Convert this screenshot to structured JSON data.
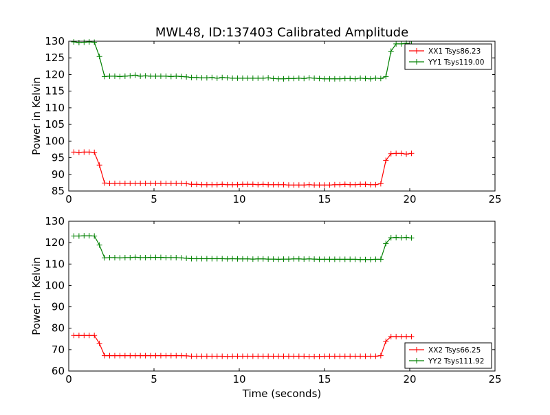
{
  "figure": {
    "title": "MWL48, ID:137403 Calibrated Amplitude",
    "xlabel": "Time (seconds)"
  },
  "chart_data": [
    {
      "type": "line",
      "title": "MWL48, ID:137403 Calibrated Amplitude",
      "xlabel": "",
      "ylabel": "Power in Kelvin",
      "xlim": [
        0,
        25
      ],
      "ylim": [
        85,
        130
      ],
      "xticks": [
        0,
        5,
        10,
        15,
        20,
        25
      ],
      "yticks": [
        85,
        90,
        95,
        100,
        105,
        110,
        115,
        120,
        125,
        130
      ],
      "grid": false,
      "legend": "top-right",
      "series": [
        {
          "name": "XX1 Tsys86.23",
          "color": "#ff0000",
          "x": [
            0.3,
            0.6,
            0.9,
            1.2,
            1.5,
            1.8,
            2.1,
            2.4,
            2.7,
            3.0,
            3.3,
            3.6,
            3.9,
            4.2,
            4.5,
            4.8,
            5.1,
            5.4,
            5.7,
            6.0,
            6.3,
            6.6,
            6.9,
            7.2,
            7.5,
            7.8,
            8.1,
            8.4,
            8.7,
            9.0,
            9.3,
            9.6,
            9.9,
            10.2,
            10.5,
            10.8,
            11.1,
            11.4,
            11.7,
            12.0,
            12.3,
            12.6,
            12.9,
            13.2,
            13.5,
            13.8,
            14.1,
            14.4,
            14.7,
            15.0,
            15.3,
            15.6,
            15.9,
            16.2,
            16.5,
            16.8,
            17.1,
            17.4,
            17.7,
            18.0,
            18.3,
            18.6,
            18.9,
            19.2,
            19.5,
            19.8,
            20.1
          ],
          "y": [
            96.7,
            96.6,
            96.7,
            96.7,
            96.6,
            92.8,
            87.4,
            87.3,
            87.3,
            87.3,
            87.3,
            87.3,
            87.3,
            87.3,
            87.3,
            87.3,
            87.3,
            87.3,
            87.3,
            87.3,
            87.3,
            87.3,
            87.2,
            87.0,
            87.0,
            86.9,
            86.9,
            86.9,
            86.9,
            87.0,
            86.9,
            86.9,
            86.9,
            87.0,
            87.0,
            87.0,
            86.9,
            87.0,
            86.9,
            86.9,
            86.9,
            86.9,
            86.8,
            86.8,
            86.8,
            86.8,
            86.9,
            86.8,
            86.8,
            86.8,
            86.8,
            86.9,
            86.9,
            87.0,
            86.9,
            86.9,
            87.0,
            87.0,
            86.9,
            86.9,
            87.2,
            94.2,
            96.2,
            96.3,
            96.3,
            96.1,
            96.3
          ]
        },
        {
          "name": "YY1 Tsys119.00",
          "color": "#008000",
          "x": [
            0.3,
            0.6,
            0.9,
            1.2,
            1.5,
            1.8,
            2.1,
            2.4,
            2.7,
            3.0,
            3.3,
            3.6,
            3.9,
            4.2,
            4.5,
            4.8,
            5.1,
            5.4,
            5.7,
            6.0,
            6.3,
            6.6,
            6.9,
            7.2,
            7.5,
            7.8,
            8.1,
            8.4,
            8.7,
            9.0,
            9.3,
            9.6,
            9.9,
            10.2,
            10.5,
            10.8,
            11.1,
            11.4,
            11.7,
            12.0,
            12.3,
            12.6,
            12.9,
            13.2,
            13.5,
            13.8,
            14.1,
            14.4,
            14.7,
            15.0,
            15.3,
            15.6,
            15.9,
            16.2,
            16.5,
            16.8,
            17.1,
            17.4,
            17.7,
            18.0,
            18.3,
            18.6,
            18.9,
            19.2,
            19.5,
            19.8,
            20.1
          ],
          "y": [
            129.8,
            129.6,
            129.7,
            129.8,
            129.7,
            125.4,
            119.4,
            119.5,
            119.5,
            119.4,
            119.5,
            119.6,
            119.8,
            119.5,
            119.6,
            119.5,
            119.5,
            119.5,
            119.5,
            119.4,
            119.5,
            119.4,
            119.3,
            119.1,
            119.1,
            119.0,
            119.0,
            119.1,
            118.9,
            119.1,
            119.0,
            118.9,
            118.9,
            118.9,
            118.9,
            118.9,
            118.9,
            118.9,
            119.0,
            118.8,
            118.7,
            118.7,
            118.8,
            118.8,
            118.9,
            118.8,
            119.0,
            118.9,
            118.8,
            118.7,
            118.7,
            118.7,
            118.7,
            118.8,
            118.8,
            118.7,
            118.9,
            118.8,
            118.7,
            118.9,
            118.8,
            119.4,
            127.0,
            129.2,
            129.2,
            129.4,
            129.1
          ]
        }
      ]
    },
    {
      "type": "line",
      "title": "",
      "xlabel": "Time (seconds)",
      "ylabel": "Power in Kelvin",
      "xlim": [
        0,
        25
      ],
      "ylim": [
        60,
        130
      ],
      "xticks": [
        0,
        5,
        10,
        15,
        20,
        25
      ],
      "yticks": [
        60,
        70,
        80,
        90,
        100,
        110,
        120,
        130
      ],
      "grid": false,
      "legend": "bottom-right",
      "series": [
        {
          "name": "XX2 Tsys66.25",
          "color": "#ff0000",
          "x": [
            0.3,
            0.6,
            0.9,
            1.2,
            1.5,
            1.8,
            2.1,
            2.4,
            2.7,
            3.0,
            3.3,
            3.6,
            3.9,
            4.2,
            4.5,
            4.8,
            5.1,
            5.4,
            5.7,
            6.0,
            6.3,
            6.6,
            6.9,
            7.2,
            7.5,
            7.8,
            8.1,
            8.4,
            8.7,
            9.0,
            9.3,
            9.6,
            9.9,
            10.2,
            10.5,
            10.8,
            11.1,
            11.4,
            11.7,
            12.0,
            12.3,
            12.6,
            12.9,
            13.2,
            13.5,
            13.8,
            14.1,
            14.4,
            14.7,
            15.0,
            15.3,
            15.6,
            15.9,
            16.2,
            16.5,
            16.8,
            17.1,
            17.4,
            17.7,
            18.0,
            18.3,
            18.6,
            18.9,
            19.2,
            19.5,
            19.8,
            20.1
          ],
          "y": [
            76.6,
            76.6,
            76.6,
            76.6,
            76.6,
            72.9,
            67.2,
            67.2,
            67.2,
            67.2,
            67.2,
            67.2,
            67.2,
            67.2,
            67.2,
            67.2,
            67.2,
            67.2,
            67.2,
            67.2,
            67.2,
            67.2,
            67.1,
            66.9,
            66.9,
            66.9,
            66.9,
            66.9,
            66.9,
            66.9,
            66.8,
            66.9,
            66.9,
            66.9,
            66.9,
            66.9,
            66.9,
            66.9,
            66.9,
            66.9,
            66.9,
            66.9,
            66.9,
            66.9,
            66.9,
            66.9,
            66.8,
            66.8,
            66.8,
            66.9,
            66.9,
            66.9,
            66.9,
            66.9,
            66.9,
            66.9,
            66.9,
            66.9,
            66.9,
            66.9,
            67.2,
            73.9,
            76.1,
            76.1,
            76.1,
            76.1,
            76.1
          ]
        },
        {
          "name": "YY2 Tsys111.92",
          "color": "#008000",
          "x": [
            0.3,
            0.6,
            0.9,
            1.2,
            1.5,
            1.8,
            2.1,
            2.4,
            2.7,
            3.0,
            3.3,
            3.6,
            3.9,
            4.2,
            4.5,
            4.8,
            5.1,
            5.4,
            5.7,
            6.0,
            6.3,
            6.6,
            6.9,
            7.2,
            7.5,
            7.8,
            8.1,
            8.4,
            8.7,
            9.0,
            9.3,
            9.6,
            9.9,
            10.2,
            10.5,
            10.8,
            11.1,
            11.4,
            11.7,
            12.0,
            12.3,
            12.6,
            12.9,
            13.2,
            13.5,
            13.8,
            14.1,
            14.4,
            14.7,
            15.0,
            15.3,
            15.6,
            15.9,
            16.2,
            16.5,
            16.8,
            17.1,
            17.4,
            17.7,
            18.0,
            18.3,
            18.6,
            18.9,
            19.2,
            19.5,
            19.8,
            20.1
          ],
          "y": [
            123.1,
            123.1,
            123.2,
            123.2,
            123.1,
            118.9,
            112.9,
            113.0,
            113.0,
            112.9,
            113.0,
            113.0,
            113.2,
            113.0,
            113.0,
            113.1,
            113.1,
            113.1,
            113.0,
            113.0,
            113.0,
            112.9,
            112.7,
            112.5,
            112.5,
            112.5,
            112.5,
            112.5,
            112.5,
            112.5,
            112.4,
            112.5,
            112.4,
            112.4,
            112.4,
            112.3,
            112.4,
            112.4,
            112.3,
            112.3,
            112.2,
            112.3,
            112.3,
            112.4,
            112.4,
            112.3,
            112.4,
            112.3,
            112.2,
            112.2,
            112.2,
            112.2,
            112.2,
            112.2,
            112.2,
            112.2,
            112.1,
            112.1,
            112.1,
            112.2,
            112.2,
            119.6,
            122.3,
            122.4,
            122.3,
            122.4,
            122.2
          ]
        }
      ]
    }
  ]
}
